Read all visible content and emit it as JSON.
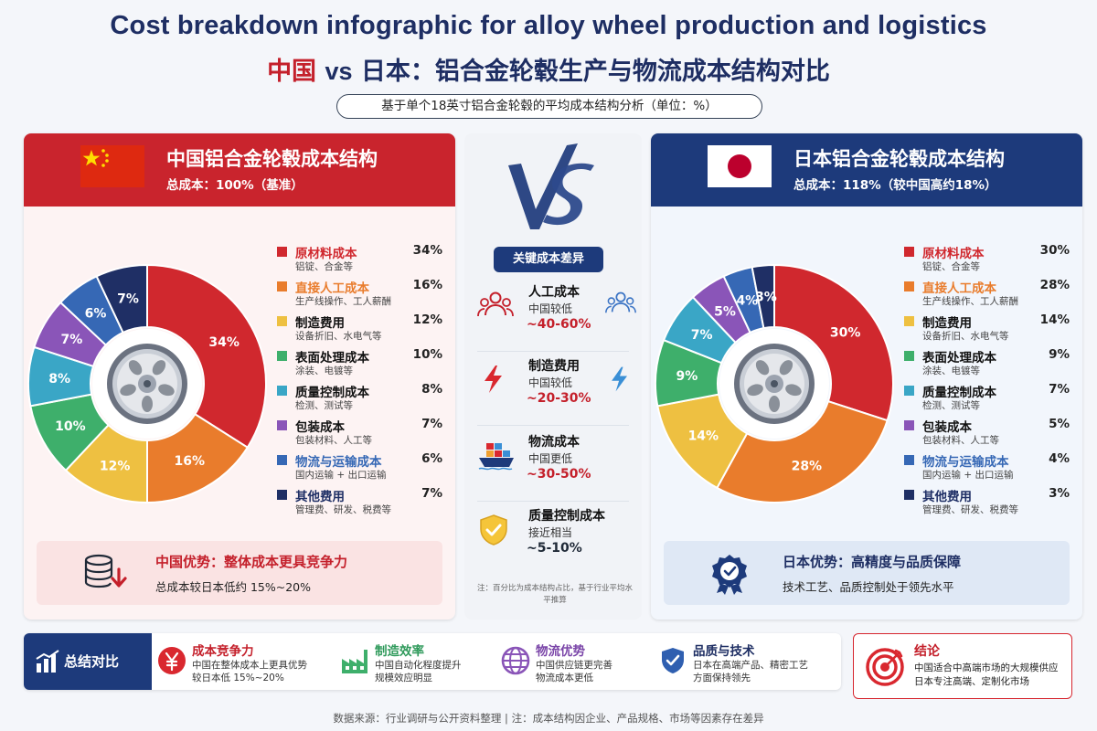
{
  "title_en": "Cost breakdown infographic for alloy wheel production and logistics",
  "title_cn": {
    "china": "中国",
    "vs": "vs",
    "japan": "日本：铝合金轮毂生产与物流成本结构对比"
  },
  "subtitle": "基于单个18英寸铝合金轮毂的平均成本结构分析（单位：%）",
  "colors": {
    "china_red": "#c9242d",
    "japan_navy": "#1d3a7b",
    "raw": "#d0282e",
    "labor": "#e97c2c",
    "mfg": "#eec041",
    "surface": "#3eaf6b",
    "qc": "#3aa6c6",
    "pack": "#8a55b8",
    "logistics": "#3668b5",
    "other": "#1f2f65"
  },
  "china": {
    "header_title": "中国铝合金轮毂成本结构",
    "header_sub": "总成本：100%（基准）",
    "legend": [
      {
        "name": "原材料成本",
        "desc": "铝锭、合金等",
        "value": "34%"
      },
      {
        "name": "直接人工成本",
        "desc": "生产线操作、工人薪酬",
        "value": "16%"
      },
      {
        "name": "制造费用",
        "desc": "设备折旧、水电气等",
        "value": "12%"
      },
      {
        "name": "表面处理成本",
        "desc": "涂装、电镀等",
        "value": "10%"
      },
      {
        "name": "质量控制成本",
        "desc": "检测、测试等",
        "value": "8%"
      },
      {
        "name": "包装成本",
        "desc": "包装材料、人工等",
        "value": "7%"
      },
      {
        "name": "物流与运输成本",
        "desc": "国内运输 + 出口运输",
        "value": "6%"
      },
      {
        "name": "其他费用",
        "desc": "管理费、研发、税费等",
        "value": "7%"
      }
    ],
    "advantage_title": "中国优势：整体成本更具竞争力",
    "advantage_sub": "总成本较日本低约 15%~20%"
  },
  "japan": {
    "header_title": "日本铝合金轮毂成本结构",
    "header_sub": "总成本：118%（较中国高约18%）",
    "legend": [
      {
        "name": "原材料成本",
        "desc": "铝锭、合金等",
        "value": "30%"
      },
      {
        "name": "直接人工成本",
        "desc": "生产线操作、工人薪酬",
        "value": "28%"
      },
      {
        "name": "制造费用",
        "desc": "设备折旧、水电气等",
        "value": "14%"
      },
      {
        "name": "表面处理成本",
        "desc": "涂装、电镀等",
        "value": "9%"
      },
      {
        "name": "质量控制成本",
        "desc": "检测、测试等",
        "value": "7%"
      },
      {
        "name": "包装成本",
        "desc": "包装材料、人工等",
        "value": "5%"
      },
      {
        "name": "物流与运输成本",
        "desc": "国内运输 + 出口运输",
        "value": "4%"
      },
      {
        "name": "其他费用",
        "desc": "管理费、研发、税费等",
        "value": "3%"
      }
    ],
    "advantage_title": "日本优势：高精度与品质保障",
    "advantage_sub": "技术工艺、品质控制处于领先水平"
  },
  "chart_data": [
    {
      "type": "pie",
      "categories": [
        "原材料成本",
        "直接人工成本",
        "制造费用",
        "表面处理成本",
        "质量控制成本",
        "包装成本",
        "物流与运输成本",
        "其他费用"
      ],
      "values": [
        34,
        16,
        12,
        10,
        8,
        7,
        6,
        7
      ],
      "title": "中国铝合金轮毂成本结构"
    },
    {
      "type": "pie",
      "categories": [
        "原材料成本",
        "直接人工成本",
        "制造费用",
        "表面处理成本",
        "质量控制成本",
        "包装成本",
        "物流与运输成本",
        "其他费用"
      ],
      "values": [
        30,
        28,
        14,
        9,
        7,
        5,
        4,
        3
      ],
      "title": "日本铝合金轮毂成本结构"
    }
  ],
  "middle": {
    "vs_label": "VS",
    "key_title": "关键成本差异",
    "items": [
      {
        "title": "人工成本",
        "sub": "中国较低",
        "value": "~40-60%"
      },
      {
        "title": "制造费用",
        "sub": "中国较低",
        "value": "~20-30%"
      },
      {
        "title": "物流成本",
        "sub": "中国更低",
        "value": "~30-50%"
      },
      {
        "title": "质量控制成本",
        "sub": "接近相当",
        "value": "~5-10%"
      }
    ],
    "note": "注：百分比为成本结构占比，基于行业平均水平推算"
  },
  "summary": {
    "label": "总结对比",
    "items": [
      {
        "title": "成本竞争力",
        "desc1": "中国在整体成本上更具优势",
        "desc2": "较日本低 15%~20%"
      },
      {
        "title": "制造效率",
        "desc1": "中国自动化程度提升",
        "desc2": "规模效应明显"
      },
      {
        "title": "物流优势",
        "desc1": "中国供应链更完善",
        "desc2": "物流成本更低"
      },
      {
        "title": "品质与技术",
        "desc1": "日本在高端产品、精密工艺",
        "desc2": "方面保持领先"
      }
    ]
  },
  "conclusion": {
    "title": "结论",
    "line1": "中国适合中高端市场的大规模供应",
    "line2": "日本专注高端、定制化市场"
  },
  "footer": "数据来源：行业调研与公开资料整理 | 注：成本结构因企业、产品规格、市场等因素存在差异"
}
